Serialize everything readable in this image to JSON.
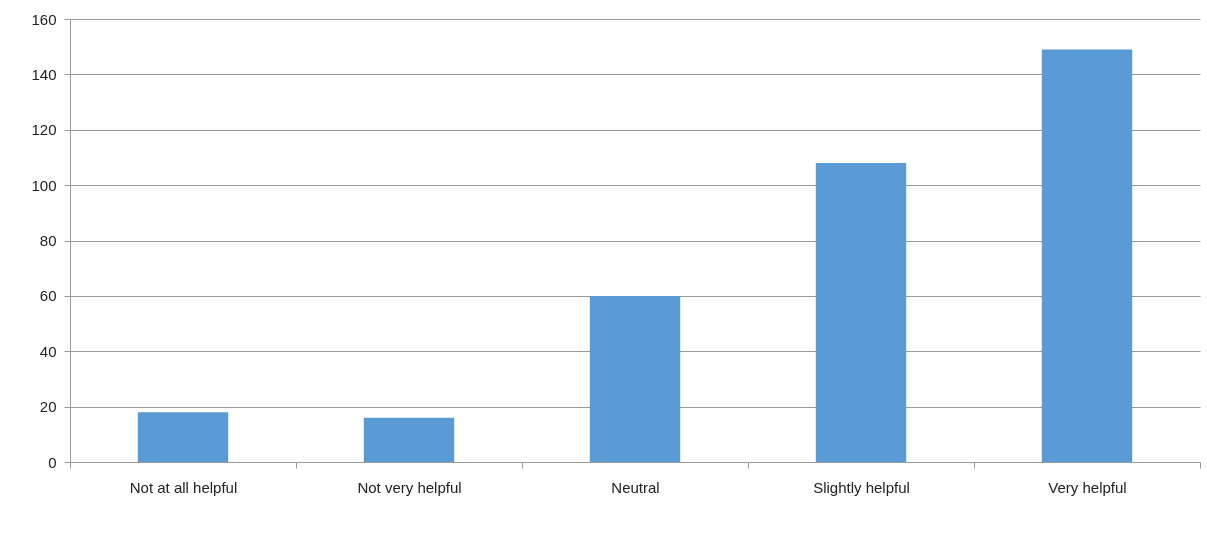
{
  "chart_data": {
    "type": "bar",
    "categories": [
      "Not at all helpful",
      "Not very helpful",
      "Neutral",
      "Slightly helpful",
      "Very helpful"
    ],
    "values": [
      18,
      16,
      60,
      108,
      149
    ],
    "color": "#5b9bd5",
    "ylim": [
      0,
      160
    ],
    "yticks": [
      0,
      20,
      40,
      60,
      80,
      100,
      120,
      140,
      160
    ],
    "grid": "y"
  }
}
